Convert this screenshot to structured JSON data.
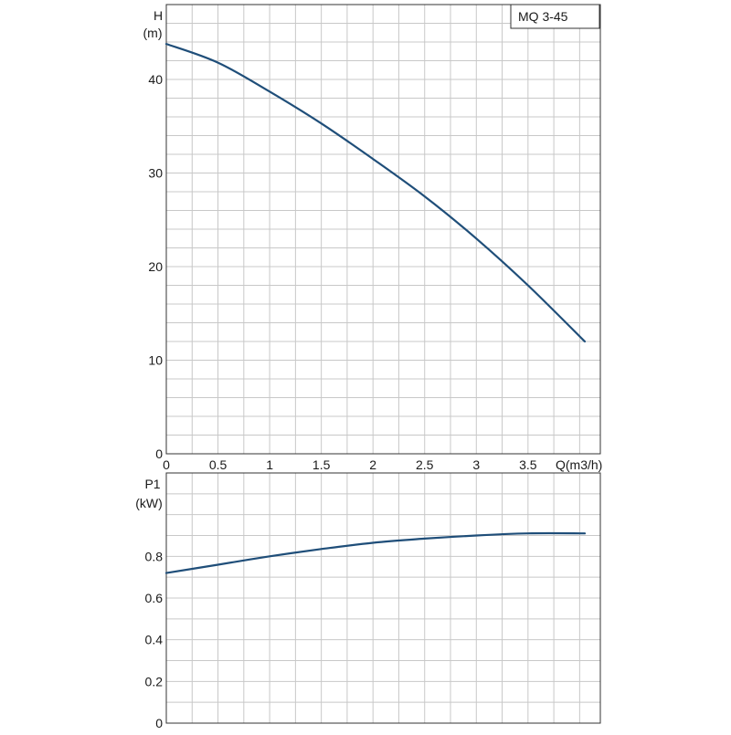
{
  "colors": {
    "curve": "#1f4e79",
    "grid": "#c8c8c8",
    "frame": "#333333"
  },
  "chart_data": [
    {
      "type": "line",
      "title": "MQ 3-45",
      "ylabel": "H",
      "yunit": "(m)",
      "xlabel": "Q(m3/h)",
      "xlim": [
        0,
        4.2
      ],
      "ylim": [
        0,
        48
      ],
      "x_ticks": [
        0,
        0.5,
        1,
        1.5,
        2,
        2.5,
        3,
        3.5
      ],
      "x_tick_labels": [
        "0",
        "0.5",
        "1",
        "1.5",
        "2",
        "2.5",
        "3",
        "3.5"
      ],
      "y_ticks": [
        0,
        10,
        20,
        30,
        40
      ],
      "y_tick_labels": [
        "0",
        "10",
        "20",
        "30",
        "40"
      ],
      "grid": true,
      "series": [
        {
          "x": [
            0,
            0.5,
            1,
            1.5,
            2,
            2.5,
            3,
            3.5,
            4.05
          ],
          "y": [
            43.8,
            41.8,
            38.7,
            35.3,
            31.5,
            27.5,
            23.0,
            18.0,
            12.0
          ]
        }
      ]
    },
    {
      "type": "line",
      "ylabel": "P1",
      "yunit": "(kW)",
      "xlim": [
        0,
        4.2
      ],
      "ylim": [
        0,
        1.2
      ],
      "y_ticks": [
        0,
        0.2,
        0.4,
        0.6,
        0.8
      ],
      "y_tick_labels": [
        "0",
        "0.2",
        "0.4",
        "0.6",
        "0.8"
      ],
      "grid": true,
      "series": [
        {
          "x": [
            0,
            0.5,
            1,
            1.5,
            2,
            2.5,
            3,
            3.5,
            4.05
          ],
          "y": [
            0.72,
            0.76,
            0.8,
            0.835,
            0.865,
            0.885,
            0.9,
            0.91,
            0.91
          ]
        }
      ]
    }
  ]
}
